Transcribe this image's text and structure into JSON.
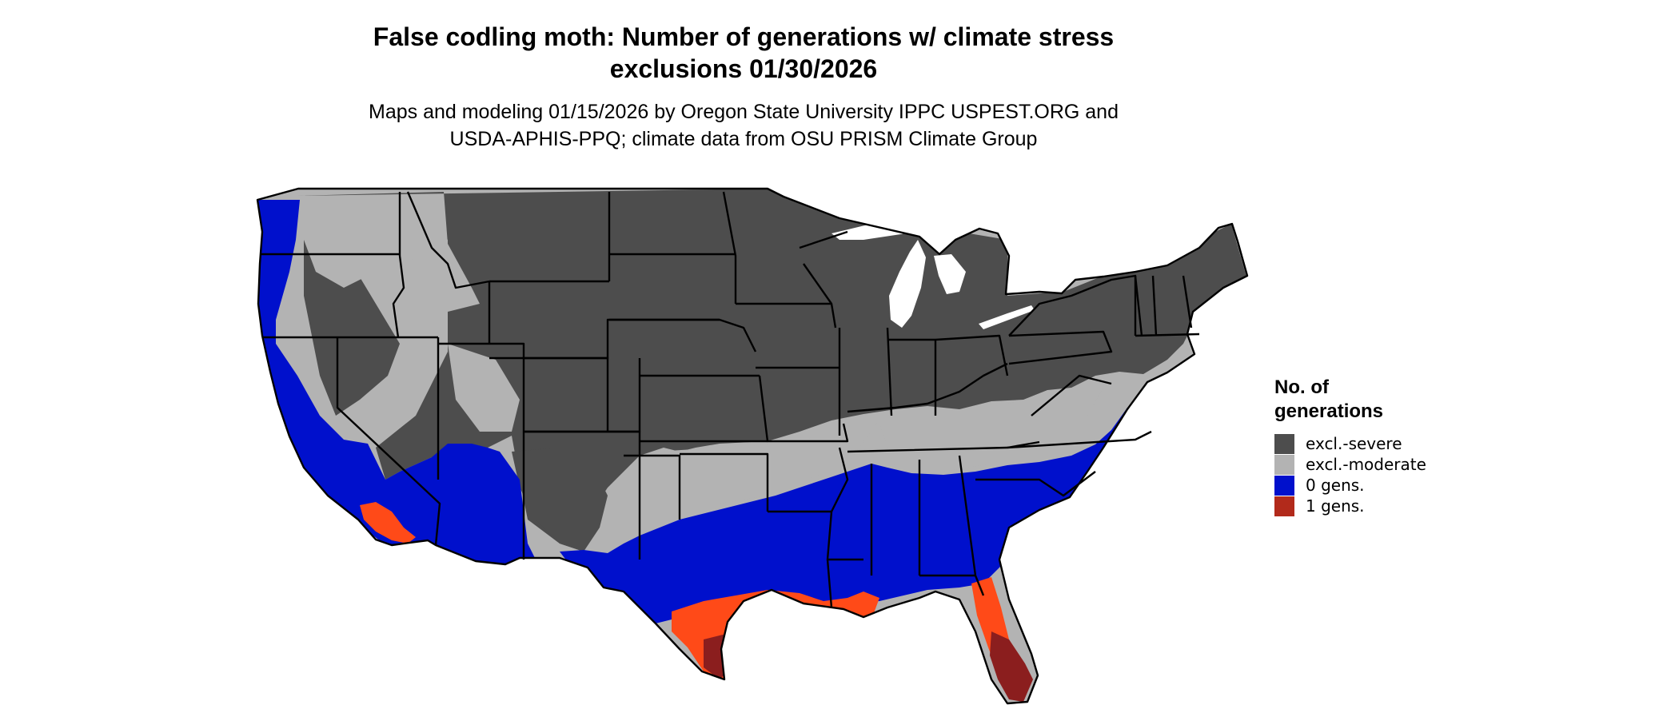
{
  "title_lines": [
    "False codling moth: Number of generations w/ climate stress",
    "exclusions 01/30/2026"
  ],
  "subtitle_lines": [
    "Maps and modeling 01/15/2026 by Oregon State University IPPC USPEST.ORG and",
    "USDA-APHIS-PPQ; climate data from OSU PRISM Climate Group"
  ],
  "legend": {
    "title_lines": [
      "No. of",
      "generations"
    ],
    "items": [
      {
        "label": "excl.-severe",
        "color": "#4d4d4d"
      },
      {
        "label": "excl.-moderate",
        "color": "#b3b3b3"
      },
      {
        "label": "0 gens.",
        "color": "#0010cc"
      },
      {
        "label": "1 gens.",
        "color": "#b22a1b"
      }
    ]
  },
  "colors": {
    "severe": "#4d4d4d",
    "moderate": "#b3b3b3",
    "zero_gens": "#0010cc",
    "one_gen_light": "#ff4a18",
    "one_gen_dark": "#8b1e1e",
    "borders": "#000000",
    "lakes": "#ffffff"
  }
}
